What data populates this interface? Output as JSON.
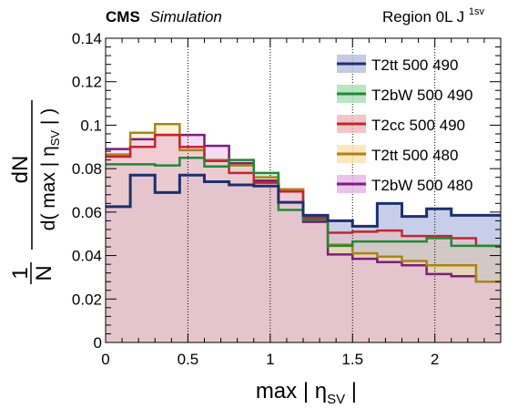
{
  "chart_data": {
    "type": "step-histogram",
    "header_left_bold": "CMS",
    "header_left_italic": "Simulation",
    "header_right": "Region 0L J",
    "header_right_sup": "1sv",
    "xlabel": "max | η",
    "xlabel_sub": "SV",
    "xlabel_tail": " |",
    "ylabel_prefix": "1",
    "ylabel_prefix_den": "N",
    "ylabel_num": "dN",
    "ylabel_den": "d( max | η",
    "ylabel_den_sub": "SV",
    "ylabel_den_tail": " | )",
    "xlim": [
      0,
      2.4
    ],
    "ylim": [
      0,
      0.14
    ],
    "x_ticks": [
      0,
      0.5,
      1,
      1.5,
      2
    ],
    "x_tick_labels": [
      "0",
      "0.5",
      "1",
      "1.5",
      "2"
    ],
    "y_ticks": [
      0,
      0.02,
      0.04,
      0.06,
      0.08,
      0.1,
      0.12,
      0.14
    ],
    "y_tick_labels": [
      "0",
      "0.02",
      "0.04",
      "0.06",
      "0.08",
      "0.1",
      "0.12",
      "0.14"
    ],
    "bin_edges": [
      0,
      0.15,
      0.3,
      0.45,
      0.6,
      0.75,
      0.9,
      1.05,
      1.2,
      1.35,
      1.5,
      1.65,
      1.8,
      1.95,
      2.1,
      2.25,
      2.4
    ],
    "dotted_verticals": [
      0.5,
      1,
      1.5,
      2
    ],
    "legend_position": "top-right",
    "series": [
      {
        "name": "T2tt 500 490",
        "color": "#1f2f6f",
        "fill": "#b6bde0",
        "values": [
          0.0625,
          0.077,
          0.069,
          0.077,
          0.074,
          0.0725,
          0.072,
          0.0645,
          0.0585,
          0.056,
          0.0535,
          0.064,
          0.058,
          0.0615,
          0.0585,
          0.0585
        ]
      },
      {
        "name": "T2bW 500 490",
        "color": "#1e8a36",
        "fill": "#a8e0b2",
        "values": [
          0.082,
          0.082,
          0.0815,
          0.085,
          0.081,
          0.084,
          0.078,
          0.061,
          0.0565,
          0.0445,
          0.0465,
          0.0465,
          0.0465,
          0.048,
          0.0445,
          0.0445
        ]
      },
      {
        "name": "T2cc 500 490",
        "color": "#c0272d",
        "fill": "#f0b8b8",
        "values": [
          0.0855,
          0.09,
          0.0955,
          0.09,
          0.0835,
          0.078,
          0.0735,
          0.0695,
          0.0575,
          0.0505,
          0.051,
          0.0515,
          0.049,
          0.049,
          0.048,
          0.0445
        ]
      },
      {
        "name": "T2tt 500 480",
        "color": "#a88418",
        "fill": "#fbe2a8",
        "values": [
          0.0865,
          0.0965,
          0.1005,
          0.0885,
          0.084,
          0.0815,
          0.076,
          0.0705,
          0.0575,
          0.045,
          0.041,
          0.0395,
          0.0375,
          0.0355,
          0.0355,
          0.028
        ]
      },
      {
        "name": "T2bW 500 480",
        "color": "#7b1f7b",
        "fill": "#e6b3e6",
        "values": [
          0.089,
          0.0935,
          0.0955,
          0.0955,
          0.0905,
          0.0825,
          0.0745,
          0.0705,
          0.0555,
          0.0405,
          0.0385,
          0.037,
          0.0355,
          0.0315,
          0.0305,
          0.028
        ]
      }
    ]
  }
}
